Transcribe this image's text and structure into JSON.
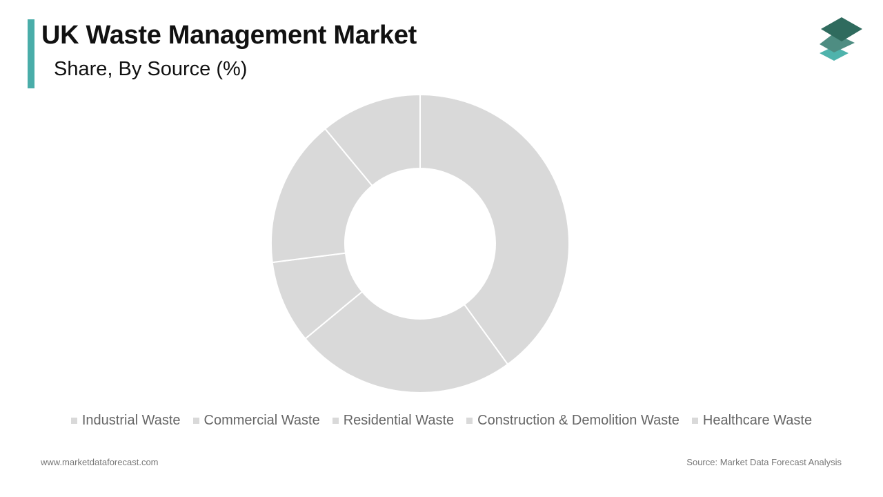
{
  "header": {
    "title": "UK Waste Management Market",
    "subtitle": "Share, By Source (%)"
  },
  "logo": {
    "icon": "stacked-layers-logo-icon",
    "colors": [
      "#2f6b5e",
      "#4e8d82",
      "#4fb3ac"
    ]
  },
  "colors": {
    "accent": "#4aada9",
    "slice": "#d9d9d9",
    "slice_border": "#ffffff",
    "legend_text": "#666666"
  },
  "chart_data": {
    "type": "pie",
    "donut": true,
    "categories": [
      "Industrial Waste",
      "Commercial Waste",
      "Residential Waste",
      "Construction & Demolition Waste",
      "Healthcare Waste"
    ],
    "values": [
      40,
      24,
      9,
      16,
      11
    ],
    "legend_position": "bottom"
  },
  "footer": {
    "website": "www.marketdataforecast.com",
    "source": "Source: Market Data Forecast Analysis"
  }
}
